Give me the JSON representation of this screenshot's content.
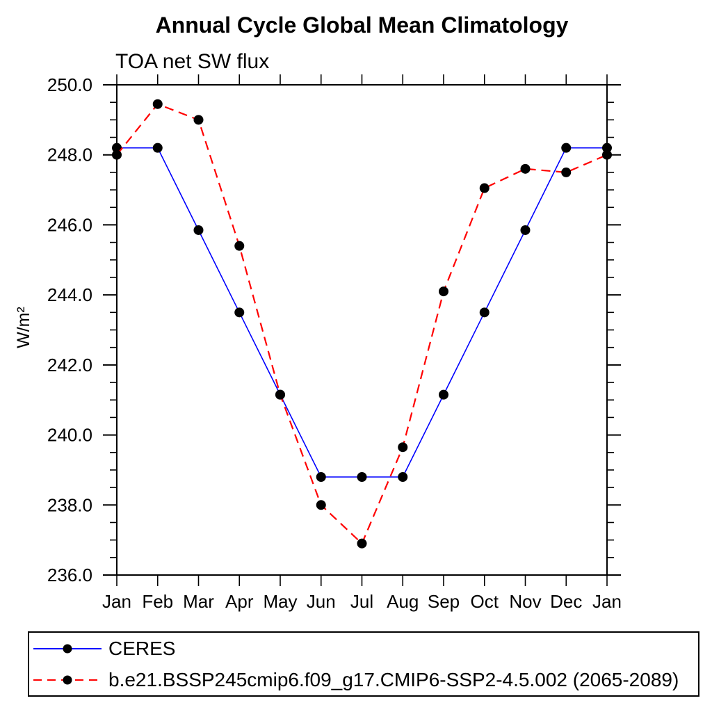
{
  "chart_data": {
    "type": "line",
    "title": "Annual Cycle Global Mean Climatology",
    "subtitle": "TOA net SW flux",
    "ylabel": "W/m²",
    "categories": [
      "Jan",
      "Feb",
      "Mar",
      "Apr",
      "May",
      "Jun",
      "Jul",
      "Aug",
      "Sep",
      "Oct",
      "Nov",
      "Dec",
      "Jan"
    ],
    "ylim": [
      236.0,
      250.0
    ],
    "ytick_step": 2.0,
    "yminor_step": 0.5,
    "yticks": [
      "250.0",
      "248.0",
      "246.0",
      "244.0",
      "242.0",
      "240.0",
      "238.0",
      "236.0"
    ],
    "grid": false,
    "legend_position": "bottom",
    "series": [
      {
        "name": "CERES",
        "color": "#0000ff",
        "style": "solid",
        "marker": "circle",
        "marker_color": "#000000",
        "values": [
          248.2,
          248.2,
          245.85,
          243.5,
          241.15,
          238.8,
          238.8,
          238.8,
          241.15,
          243.5,
          245.85,
          248.2,
          248.2
        ]
      },
      {
        "name": "b.e21.BSSP245cmip6.f09_g17.CMIP6-SSP2-4.5.002 (2065-2089)",
        "color": "#ff0000",
        "style": "dashed",
        "marker": "circle",
        "marker_color": "#000000",
        "values": [
          248.0,
          249.45,
          249.0,
          245.4,
          241.15,
          238.0,
          236.9,
          239.65,
          244.1,
          247.05,
          247.6,
          247.5,
          248.0
        ]
      }
    ]
  }
}
